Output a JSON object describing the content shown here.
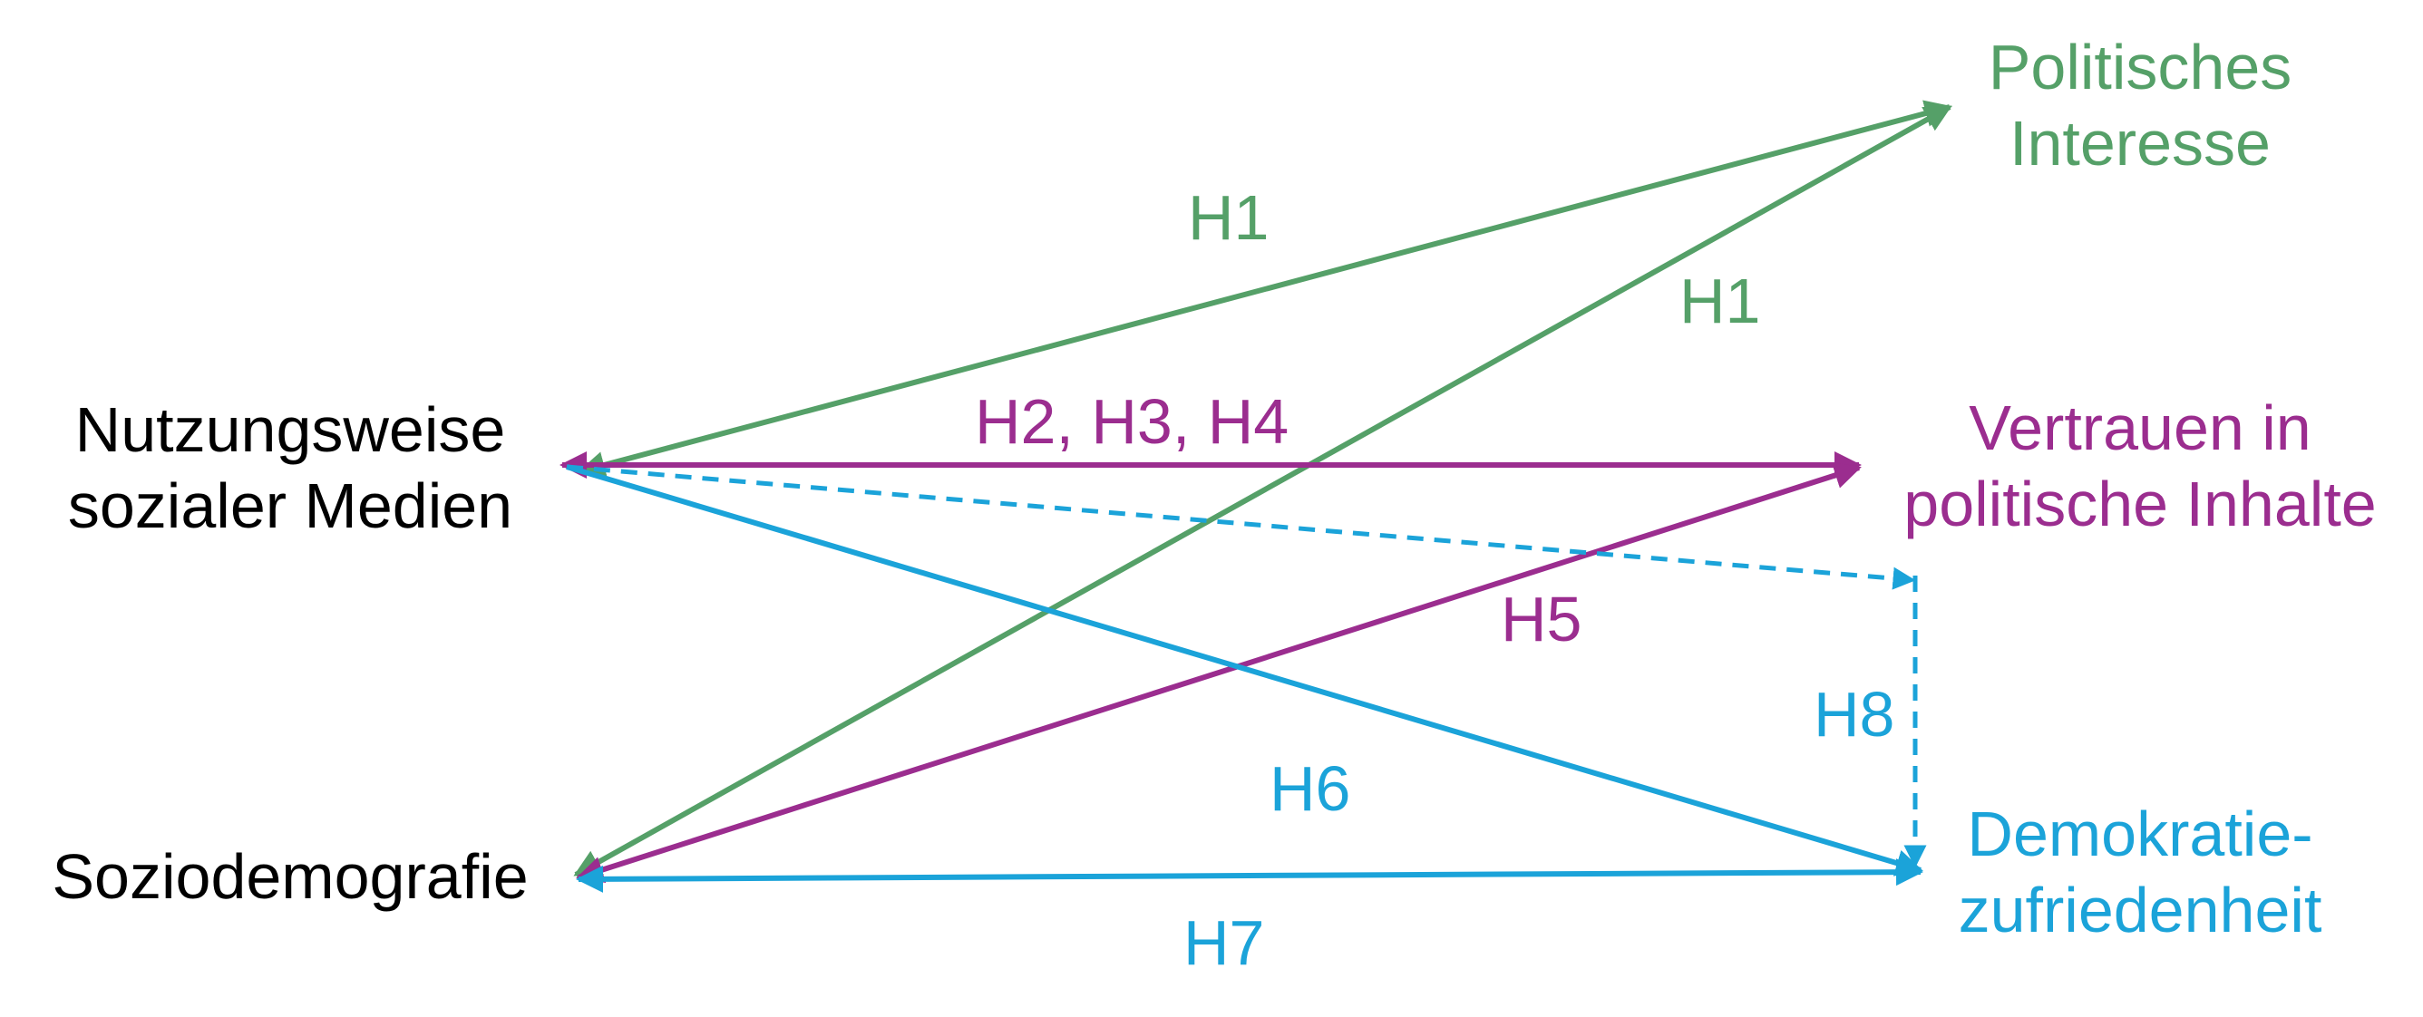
{
  "colors": {
    "green": "#55a068",
    "purple": "#9b2d8f",
    "blue": "#1ba3d9",
    "black": "#000000"
  },
  "nodes": {
    "usage": {
      "line1": "Nutzungsweise",
      "line2": "sozialer Medien"
    },
    "sociodemography": {
      "line1": "Soziodemografie"
    },
    "political_interest": {
      "line1": "Politisches",
      "line2": "Interesse"
    },
    "trust": {
      "line1": "Vertrauen in",
      "line2": "politische Inhalte"
    },
    "satisfaction": {
      "line1": "Demokratie-",
      "line2": "zufriedenheit"
    }
  },
  "edges": [
    {
      "id": "h1-usage-interest",
      "from": "usage",
      "to": "political_interest",
      "label": "H1",
      "style": "solid",
      "color": "green"
    },
    {
      "id": "h1-socio-interest",
      "from": "sociodemography",
      "to": "political_interest",
      "label": "H1",
      "style": "solid",
      "color": "green"
    },
    {
      "id": "h234-usage-trust",
      "from": "usage",
      "to": "trust",
      "label": "H2, H3, H4",
      "style": "solid",
      "color": "purple"
    },
    {
      "id": "h5-socio-trust",
      "from": "sociodemography",
      "to": "trust",
      "label": "H5",
      "style": "solid",
      "color": "purple"
    },
    {
      "id": "h6-usage-satisfaction",
      "from": "usage",
      "to": "satisfaction",
      "label": "H6",
      "style": "solid",
      "color": "blue"
    },
    {
      "id": "h7-socio-satisfaction",
      "from": "sociodemography",
      "to": "satisfaction",
      "label": "H7",
      "style": "solid",
      "color": "blue"
    },
    {
      "id": "h8-usage-satisfaction-mediated",
      "from": "usage",
      "to": "satisfaction",
      "label": "H8",
      "style": "dashed",
      "color": "blue"
    }
  ]
}
